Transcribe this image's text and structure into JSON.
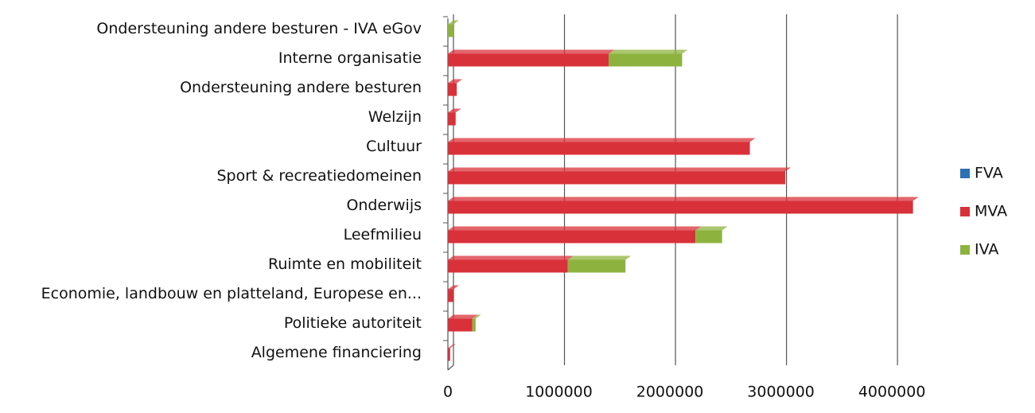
{
  "chart_data": {
    "type": "bar",
    "orientation": "horizontal",
    "stacked": true,
    "categories": [
      "Ondersteuning andere besturen - IVA eGov",
      "Interne organisatie",
      "Ondersteuning andere besturen",
      "Welzijn",
      "Cultuur",
      "Sport & recreatiedomeinen",
      "Onderwijs",
      "Leefmilieu",
      "Ruimte en mobiliteit",
      "Economie, landbouw en platteland, Europese en...",
      "Politieke autoriteit",
      "Algemene financiering"
    ],
    "series": [
      {
        "name": "FVA",
        "color": "#2e6fb5",
        "values": [
          0,
          0,
          0,
          0,
          0,
          0,
          0,
          0,
          0,
          0,
          0,
          0
        ]
      },
      {
        "name": "MVA",
        "color": "#d9313a",
        "values": [
          0,
          1450000,
          80000,
          70000,
          2720000,
          3040000,
          4190000,
          2230000,
          1080000,
          50000,
          220000,
          20000
        ]
      },
      {
        "name": "IVA",
        "color": "#8db33e",
        "values": [
          50000,
          660000,
          0,
          0,
          0,
          0,
          0,
          240000,
          520000,
          0,
          30000,
          0
        ]
      }
    ],
    "xlim": [
      0,
      4300000
    ],
    "xticks": [
      0,
      1000000,
      2000000,
      3000000,
      4000000
    ],
    "grid": true,
    "legend": "right"
  }
}
